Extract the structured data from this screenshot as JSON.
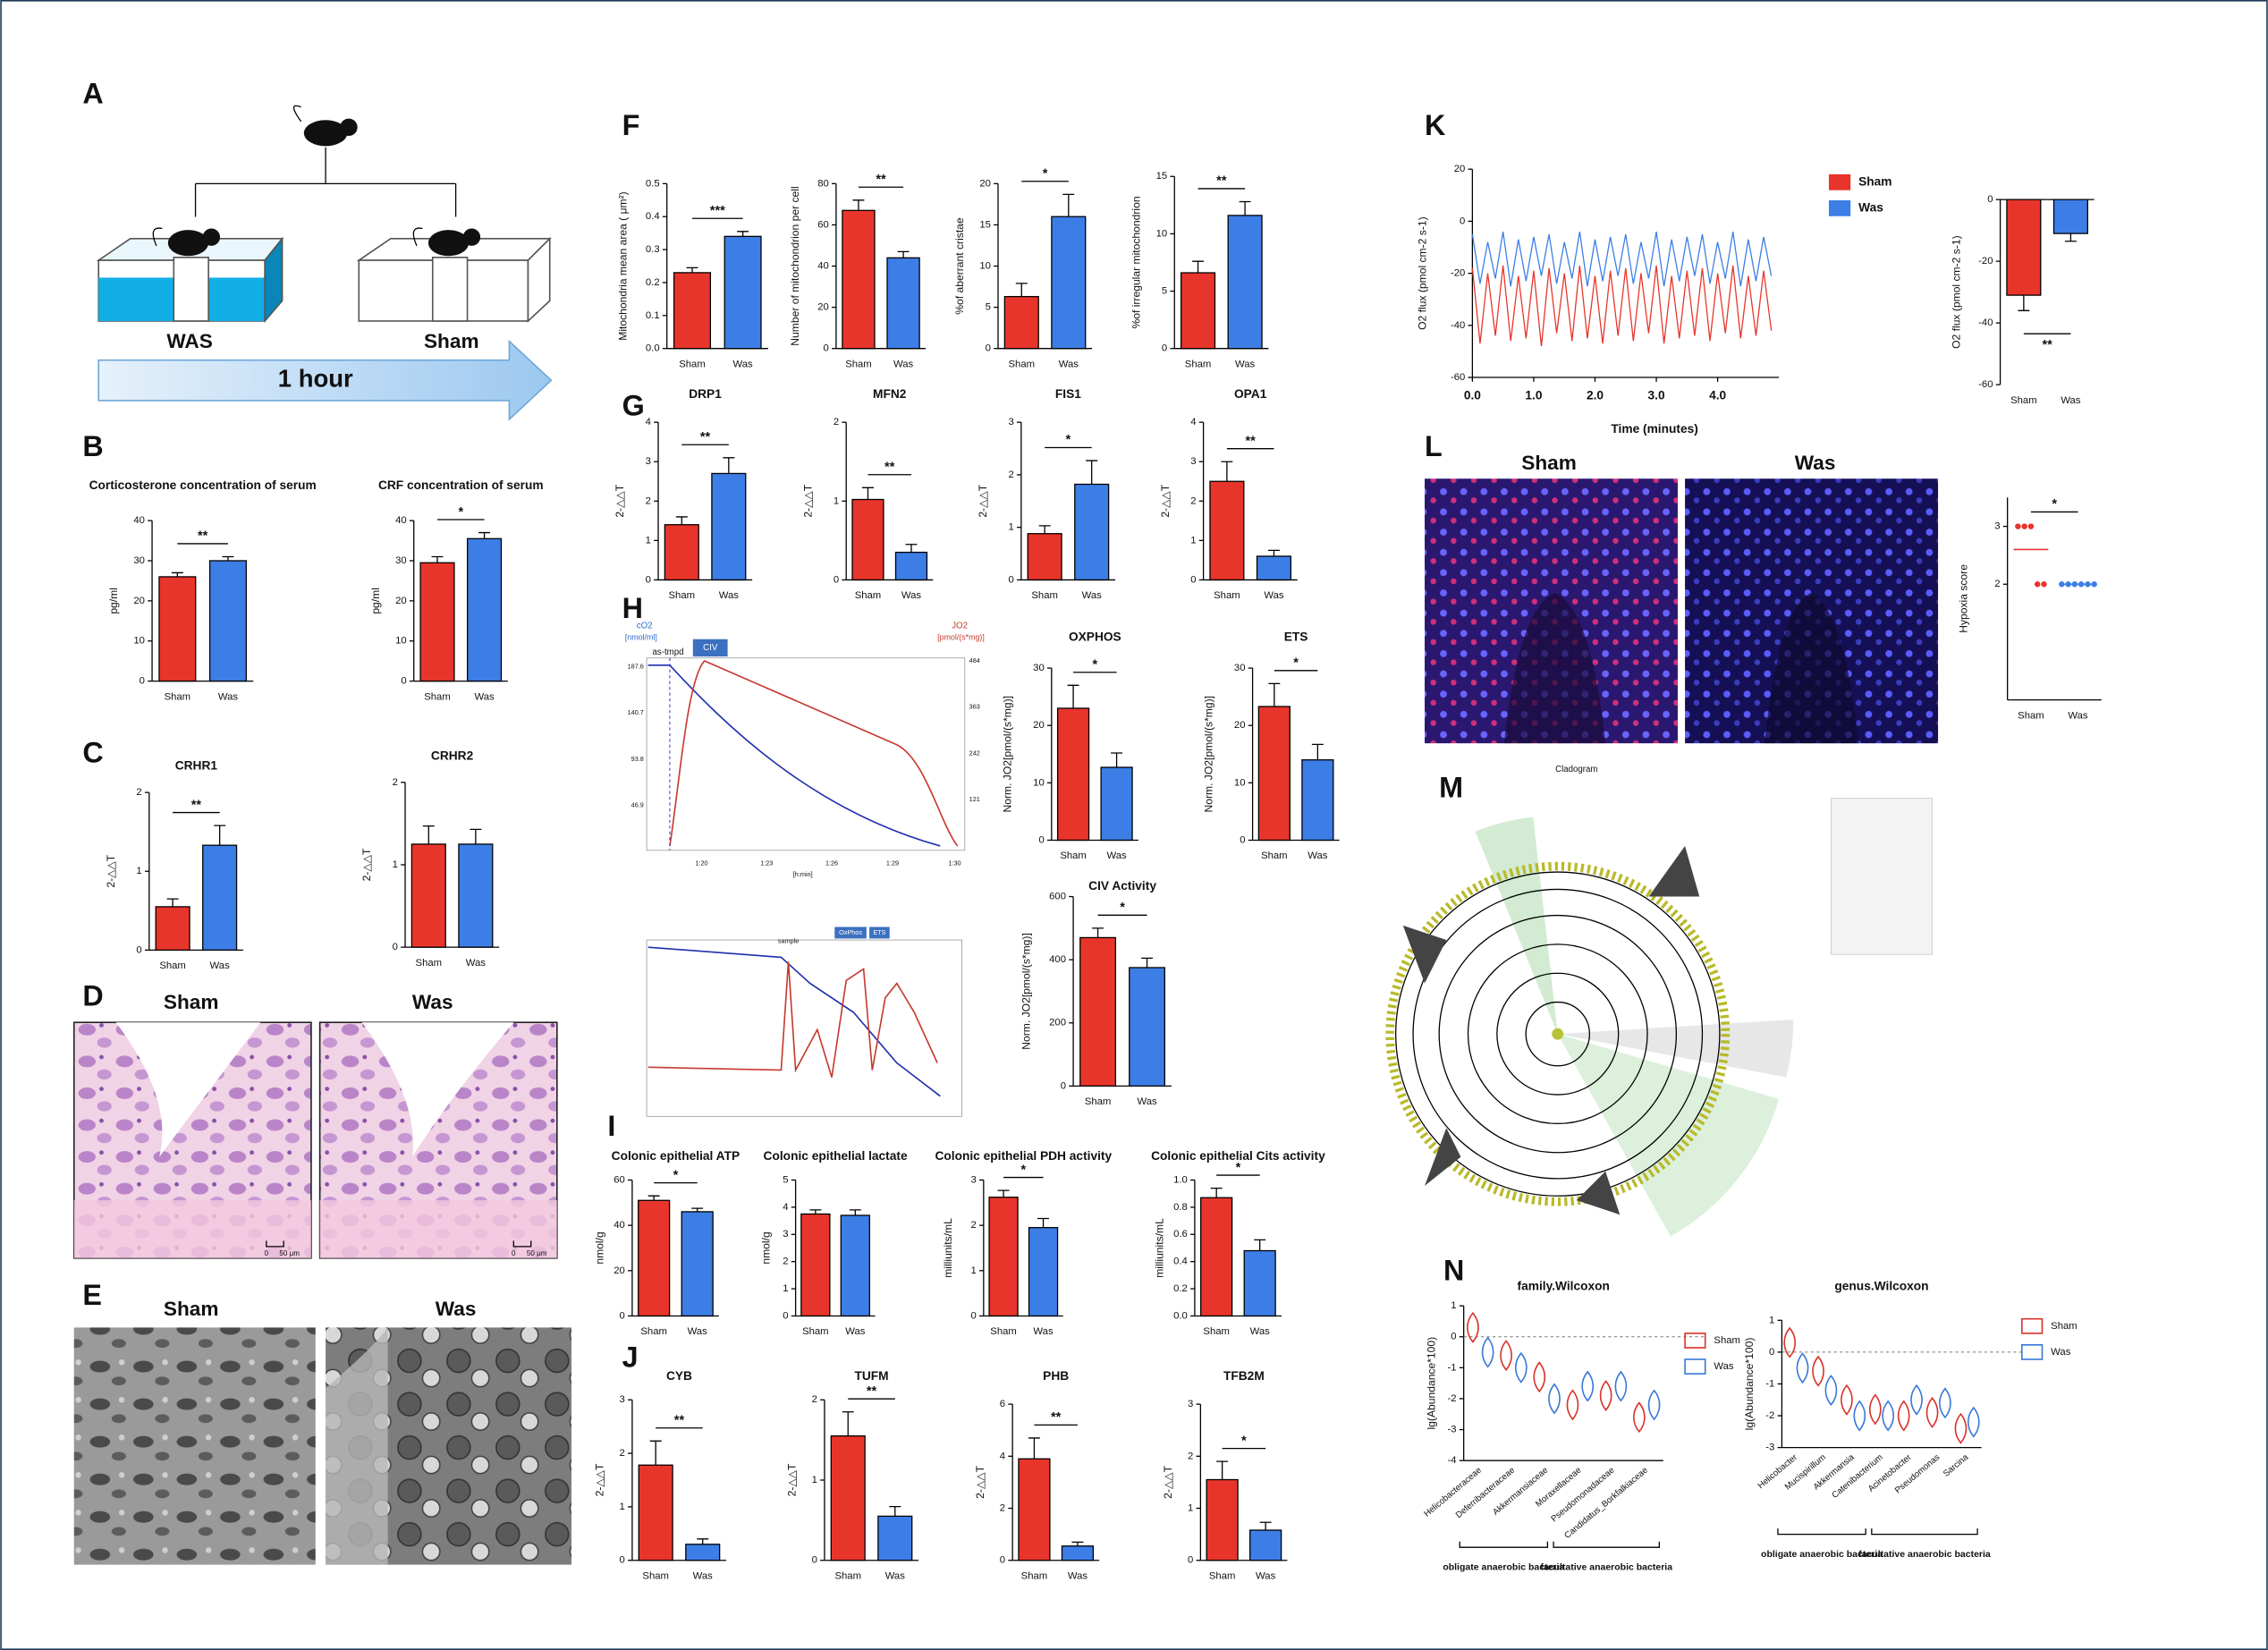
{
  "panel_labels": [
    "A",
    "B",
    "C",
    "D",
    "E",
    "F",
    "G",
    "H",
    "I",
    "J",
    "K",
    "L",
    "M",
    "N"
  ],
  "diagram_a": {
    "left_label": "WAS",
    "right_label": "Sham",
    "arrow_label": "1 hour"
  },
  "image_d": {
    "left": "Sham",
    "right": "Was",
    "scale_zero": "0",
    "scale_label": "50 μm"
  },
  "image_e": {
    "left": "Sham",
    "right": "Was"
  },
  "image_l": {
    "left": "Sham",
    "right": "Was"
  },
  "cladogram": {
    "title": "Cladogram"
  },
  "oxygraph_1": {
    "left_title": "cO2",
    "left_unit": "[nmol/ml]",
    "right_title": "JO2",
    "right_unit": "[pmol/(s*mg)]",
    "marker": "as-tmpd",
    "step": "CIV",
    "left_ticks": [
      "187.6",
      "140.7",
      "93.8",
      "46.9"
    ],
    "right_ticks": [
      "484",
      "363",
      "242",
      "121"
    ],
    "x_ticks": [
      "1:20",
      "1:23",
      "1:26",
      "1:29",
      "1:30"
    ],
    "x_label": "[h:min]"
  },
  "oxygraph_2": {
    "event": "sample",
    "steps": [
      "OxPhos",
      "ETS"
    ]
  },
  "chart_data": [
    {
      "type": "bar",
      "title": "Corticosterone concentration of serum",
      "ylabel": "pg/ml",
      "categories": [
        "Sham",
        "Was"
      ],
      "values": [
        26,
        30
      ],
      "errors": [
        1,
        1
      ],
      "colors": [
        "#e8352b",
        "#3d7ee6"
      ],
      "ylim": [
        0,
        40
      ],
      "yticks": [
        0,
        10,
        20,
        30,
        40
      ],
      "annotation": "**"
    },
    {
      "type": "bar",
      "title": "CRF concentration of serum",
      "ylabel": "pg/ml",
      "categories": [
        "Sham",
        "Was"
      ],
      "values": [
        29.5,
        35.5
      ],
      "errors": [
        1.5,
        1.5
      ],
      "colors": [
        "#e8352b",
        "#3d7ee6"
      ],
      "ylim": [
        0,
        40
      ],
      "yticks": [
        0,
        10,
        20,
        30,
        40
      ],
      "annotation": "*"
    },
    {
      "type": "bar",
      "title": "CRHR1",
      "ylabel": "2-△△T",
      "categories": [
        "Sham",
        "Was"
      ],
      "values": [
        0.55,
        1.33
      ],
      "errors": [
        0.1,
        0.25
      ],
      "colors": [
        "#e8352b",
        "#3d7ee6"
      ],
      "ylim": [
        0,
        2
      ],
      "yticks": [
        0,
        1,
        2
      ],
      "annotation": "**"
    },
    {
      "type": "bar",
      "title": "CRHR2",
      "ylabel": "2-△△T",
      "categories": [
        "Sham",
        "Was"
      ],
      "values": [
        1.25,
        1.25
      ],
      "errors": [
        0.22,
        0.18
      ],
      "colors": [
        "#e8352b",
        "#3d7ee6"
      ],
      "ylim": [
        0,
        2
      ],
      "yticks": [
        0,
        1,
        2
      ]
    },
    {
      "type": "bar",
      "ylabel": "Mitochondria mean area ( μm²)",
      "categories": [
        "Sham",
        "Was"
      ],
      "values": [
        0.23,
        0.34
      ],
      "errors": [
        0.015,
        0.015
      ],
      "colors": [
        "#e8352b",
        "#3d7ee6"
      ],
      "ylim": [
        0,
        0.5
      ],
      "yticks": [
        {
          "value": 0,
          "label": "0.0"
        },
        0.1,
        0.2,
        0.3,
        0.4,
        0.5
      ],
      "annotation": "***"
    },
    {
      "type": "bar",
      "ylabel": "Number of mitochondrion per cell",
      "categories": [
        "Sham",
        "Was"
      ],
      "values": [
        67,
        44
      ],
      "errors": [
        5,
        3
      ],
      "colors": [
        "#e8352b",
        "#3d7ee6"
      ],
      "ylim": [
        0,
        80
      ],
      "yticks": [
        0,
        20,
        40,
        60,
        80
      ],
      "annotation": "**"
    },
    {
      "type": "bar",
      "ylabel": "%of aberrant cristae",
      "categories": [
        "Sham",
        "Was"
      ],
      "values": [
        6.3,
        16
      ],
      "errors": [
        1.6,
        2.7
      ],
      "colors": [
        "#e8352b",
        "#3d7ee6"
      ],
      "ylim": [
        0,
        20
      ],
      "yticks": [
        0,
        5,
        10,
        15,
        20
      ],
      "annotation": "*"
    },
    {
      "type": "bar",
      "ylabel": "%of irregular mitochondrion",
      "categories": [
        "Sham",
        "Was"
      ],
      "values": [
        6.6,
        11.6
      ],
      "errors": [
        1,
        1.2
      ],
      "colors": [
        "#e8352b",
        "#3d7ee6"
      ],
      "ylim": [
        0,
        15
      ],
      "yticks": [
        0,
        5,
        10,
        15
      ],
      "annotation": "**"
    },
    {
      "type": "bar",
      "title": "DRP1",
      "ylabel": "2-△△T",
      "categories": [
        "Sham",
        "Was"
      ],
      "values": [
        1.4,
        2.7
      ],
      "errors": [
        0.2,
        0.4
      ],
      "colors": [
        "#e8352b",
        "#3d7ee6"
      ],
      "ylim": [
        0,
        4
      ],
      "yticks": [
        0,
        1,
        2,
        3,
        4
      ],
      "annotation": "**"
    },
    {
      "type": "bar",
      "title": "MFN2",
      "ylabel": "2-△△T",
      "categories": [
        "Sham",
        "Was"
      ],
      "values": [
        1.02,
        0.35
      ],
      "errors": [
        0.15,
        0.1
      ],
      "colors": [
        "#e8352b",
        "#3d7ee6"
      ],
      "ylim": [
        0,
        2
      ],
      "yticks": [
        0,
        1,
        2
      ],
      "annotation": "**"
    },
    {
      "type": "bar",
      "title": "FIS1",
      "ylabel": "2-△△T",
      "categories": [
        "Sham",
        "Was"
      ],
      "values": [
        0.88,
        1.82
      ],
      "errors": [
        0.15,
        0.45
      ],
      "colors": [
        "#e8352b",
        "#3d7ee6"
      ],
      "ylim": [
        0,
        3
      ],
      "yticks": [
        0,
        1,
        2,
        3
      ],
      "annotation": "*"
    },
    {
      "type": "bar",
      "title": "OPA1",
      "ylabel": "2-△△T",
      "categories": [
        "Sham",
        "Was"
      ],
      "values": [
        2.5,
        0.6
      ],
      "errors": [
        0.5,
        0.15
      ],
      "colors": [
        "#e8352b",
        "#3d7ee6"
      ],
      "ylim": [
        0,
        4
      ],
      "yticks": [
        0,
        1,
        2,
        3,
        4
      ],
      "annotation": "**"
    },
    {
      "type": "bar",
      "title": "OXPHOS",
      "ylabel": "Norm. JO2[pmol/(s*mg)]",
      "categories": [
        "Sham",
        "Was"
      ],
      "values": [
        23,
        12.7
      ],
      "errors": [
        4,
        2.5
      ],
      "colors": [
        "#e8352b",
        "#3d7ee6"
      ],
      "ylim": [
        0,
        30
      ],
      "yticks": [
        0,
        10,
        20,
        30
      ],
      "annotation": "*"
    },
    {
      "type": "bar",
      "title": "ETS",
      "ylabel": "Norm. JO2[pmol/(s*mg)]",
      "categories": [
        "Sham",
        "Was"
      ],
      "values": [
        23.3,
        14
      ],
      "errors": [
        4,
        2.7
      ],
      "colors": [
        "#e8352b",
        "#3d7ee6"
      ],
      "ylim": [
        0,
        30
      ],
      "yticks": [
        0,
        10,
        20,
        30
      ],
      "annotation": "*"
    },
    {
      "type": "bar",
      "title": "CIV Activity",
      "ylabel": "Norm. JO2[pmol/(s*mg)]",
      "categories": [
        "Sham",
        "Was"
      ],
      "values": [
        470,
        375
      ],
      "errors": [
        30,
        30
      ],
      "colors": [
        "#e8352b",
        "#3d7ee6"
      ],
      "ylim": [
        0,
        600
      ],
      "yticks": [
        0,
        200,
        400,
        600
      ],
      "annotation": "*"
    },
    {
      "type": "bar",
      "title": "Colonic epithelial ATP",
      "ylabel": "nmol/g",
      "categories": [
        "Sham",
        "Was"
      ],
      "values": [
        51,
        46
      ],
      "errors": [
        2,
        1.5
      ],
      "colors": [
        "#e8352b",
        "#3d7ee6"
      ],
      "ylim": [
        0,
        60
      ],
      "yticks": [
        0,
        20,
        40,
        60
      ],
      "annotation": "*"
    },
    {
      "type": "bar",
      "title": "Colonic epithelial lactate",
      "ylabel": "nmol/g",
      "categories": [
        "Sham",
        "Was"
      ],
      "values": [
        3.75,
        3.7
      ],
      "errors": [
        0.15,
        0.2
      ],
      "colors": [
        "#e8352b",
        "#3d7ee6"
      ],
      "ylim": [
        0,
        5
      ],
      "yticks": [
        0,
        1,
        2,
        3,
        4,
        5
      ]
    },
    {
      "type": "bar",
      "title": "Colonic epithelial PDH activity",
      "ylabel": "milliunits/mL",
      "categories": [
        "Sham",
        "Was"
      ],
      "values": [
        2.62,
        1.95
      ],
      "errors": [
        0.15,
        0.2
      ],
      "colors": [
        "#e8352b",
        "#3d7ee6"
      ],
      "ylim": [
        0,
        3
      ],
      "yticks": [
        0,
        1,
        2,
        3
      ],
      "annotation": "*"
    },
    {
      "type": "bar",
      "title": "Colonic epithelial Cits activity",
      "ylabel": "milliunits/mL",
      "categories": [
        "Sham",
        "Was"
      ],
      "values": [
        0.87,
        0.48
      ],
      "errors": [
        0.07,
        0.08
      ],
      "colors": [
        "#e8352b",
        "#3d7ee6"
      ],
      "ylim": [
        0,
        1
      ],
      "yticks": [
        {
          "value": 0,
          "label": "0.0"
        },
        0.2,
        0.4,
        0.6,
        0.8,
        {
          "value": 1,
          "label": "1.0"
        }
      ],
      "annotation": "*"
    },
    {
      "type": "bar",
      "title": "CYB",
      "ylabel": "2-△△T",
      "categories": [
        "Sham",
        "Was"
      ],
      "values": [
        1.78,
        0.3
      ],
      "errors": [
        0.45,
        0.1
      ],
      "colors": [
        "#e8352b",
        "#3d7ee6"
      ],
      "ylim": [
        0,
        3
      ],
      "yticks": [
        0,
        1,
        2,
        3
      ],
      "annotation": "**"
    },
    {
      "type": "bar",
      "title": "TUFM",
      "ylabel": "2-△△T",
      "categories": [
        "Sham",
        "Was"
      ],
      "values": [
        1.55,
        0.55
      ],
      "errors": [
        0.3,
        0.12
      ],
      "colors": [
        "#e8352b",
        "#3d7ee6"
      ],
      "ylim": [
        0,
        2
      ],
      "yticks": [
        0,
        1,
        2
      ],
      "annotation": "**"
    },
    {
      "type": "bar",
      "title": "PHB",
      "ylabel": "2-△△T",
      "categories": [
        "Sham",
        "Was"
      ],
      "values": [
        3.9,
        0.55
      ],
      "errors": [
        0.8,
        0.15
      ],
      "colors": [
        "#e8352b",
        "#3d7ee6"
      ],
      "ylim": [
        0,
        6
      ],
      "yticks": [
        0,
        2,
        4,
        6
      ],
      "annotation": "**"
    },
    {
      "type": "bar",
      "title": "TFB2M",
      "ylabel": "2-△△T",
      "categories": [
        "Sham",
        "Was"
      ],
      "values": [
        1.55,
        0.58
      ],
      "errors": [
        0.35,
        0.15
      ],
      "colors": [
        "#e8352b",
        "#3d7ee6"
      ],
      "ylim": [
        0,
        3
      ],
      "yticks": [
        0,
        1,
        2,
        3
      ],
      "annotation": "*"
    },
    {
      "type": "bar",
      "ylabel": "O2 flux (pmol cm-2 s-1)",
      "categories": [
        "Sham",
        "Was"
      ],
      "values": [
        -31,
        -11
      ],
      "errors": [
        5,
        2.5
      ],
      "colors": [
        "#e8352b",
        "#3d7ee6"
      ],
      "ylim": [
        -60,
        0
      ],
      "yticks": [
        0,
        -20,
        -40,
        -60
      ],
      "annotation": "**"
    },
    {
      "type": "dot",
      "ylabel": "Hypoxia score",
      "categories": [
        "Sham",
        "Was"
      ],
      "values": [
        [
          3,
          3,
          3,
          2,
          2
        ],
        [
          2,
          2,
          2,
          2,
          2,
          2
        ]
      ],
      "colors": [
        "#e8352b",
        "#3d7ee6"
      ],
      "ylim": [
        0,
        3.5
      ],
      "yticks": [
        2,
        3
      ],
      "annotation": "*"
    },
    {
      "type": "line",
      "xlabel": "Time (minutes)",
      "ylabel": "O2 flux (pmol cm-2 s-1)",
      "x": [
        0,
        0.125,
        0.25,
        0.375,
        0.5,
        0.625,
        0.75,
        0.875,
        1,
        1.125,
        1.25,
        1.375,
        1.5,
        1.625,
        1.75,
        1.875,
        2,
        2.125,
        2.25,
        2.375,
        2.5,
        2.625,
        2.75,
        2.875,
        3,
        3.125,
        3.25,
        3.375,
        3.5,
        3.625,
        3.75,
        3.875,
        4,
        4.125,
        4.25,
        4.375,
        4.5,
        4.625,
        4.75,
        4.875
      ],
      "series": [
        {
          "name": "Sham",
          "color": "#e8352b",
          "values": [
            -18,
            -47,
            -20,
            -44,
            -17,
            -46,
            -21,
            -45,
            -19,
            -48,
            -18,
            -43,
            -20,
            -46,
            -17,
            -45,
            -21,
            -47,
            -19,
            -44,
            -18,
            -46,
            -20,
            -43,
            -17,
            -47,
            -21,
            -45,
            -19,
            -44,
            -18,
            -46,
            -20,
            -43,
            -17,
            -45,
            -21,
            -44,
            -19,
            -42
          ]
        },
        {
          "name": "Was",
          "color": "#3d7ee6",
          "values": [
            -5,
            -24,
            -8,
            -22,
            -4,
            -25,
            -7,
            -23,
            -6,
            -21,
            -5,
            -24,
            -8,
            -22,
            -4,
            -25,
            -7,
            -23,
            -6,
            -21,
            -5,
            -24,
            -8,
            -22,
            -4,
            -25,
            -7,
            -23,
            -6,
            -21,
            -5,
            -24,
            -8,
            -22,
            -4,
            -25,
            -7,
            -23,
            -6,
            -21
          ]
        }
      ],
      "xlim": [
        0,
        5
      ],
      "xticks": [
        {
          "value": 0,
          "label": "0.0"
        },
        {
          "value": 1,
          "label": "1.0"
        },
        {
          "value": 2,
          "label": "2.0"
        },
        {
          "value": 3,
          "label": "3.0"
        },
        {
          "value": 4,
          "label": "4.0"
        }
      ],
      "ylim": [
        -60,
        20
      ],
      "yticks": [
        20,
        0,
        -20,
        -40,
        -60
      ]
    },
    {
      "type": "violin",
      "title": "family.Wilcoxon",
      "ylabel": "lg(Abundance*100)",
      "categories": [
        "Helicobacteraceae",
        "Deferribacteraceae",
        "Akkermansiaceae",
        "Moraxellaceae",
        "Pseudomonadaceae",
        "Candidatus_Borkfalkiaceae"
      ],
      "series": [
        {
          "name": "Sham",
          "color": "#d9322a",
          "values": [
            0.3,
            -0.6,
            -1.3,
            -2.2,
            -1.9,
            -2.6
          ]
        },
        {
          "name": "Was",
          "color": "#3a78d8",
          "values": [
            -0.5,
            -1,
            -2,
            -1.6,
            -1.6,
            -2.2
          ]
        }
      ],
      "ylim": [
        -4,
        1
      ],
      "yticks": [
        1,
        0,
        -1,
        -2,
        -3,
        -4
      ],
      "groups": [
        "obligate anaerobic bacteria",
        "facultative anaerobic bacteria"
      ]
    },
    {
      "type": "violin",
      "title": "genus.Wilcoxon",
      "ylabel": "lg(Abundance*100)",
      "categories": [
        "Helicobacter",
        "Mucispirillum",
        "Akkermansia",
        "Catenibacterium",
        "Acinetobacter",
        "Pseudomonas",
        "Sarcina"
      ],
      "series": [
        {
          "name": "Sham",
          "color": "#d9322a",
          "values": [
            0.3,
            -0.6,
            -1.5,
            -1.8,
            -2,
            -1.9,
            -2.4
          ]
        },
        {
          "name": "Was",
          "color": "#3a78d8",
          "values": [
            -0.5,
            -1.2,
            -2,
            -2,
            -1.5,
            -1.6,
            -2.2
          ]
        }
      ],
      "ylim": [
        -3,
        1
      ],
      "yticks": [
        1,
        0,
        -1,
        -2,
        -3
      ],
      "groups": [
        "obligate anaerobic bacteria",
        "facultative anaerobic bacteria"
      ]
    }
  ]
}
